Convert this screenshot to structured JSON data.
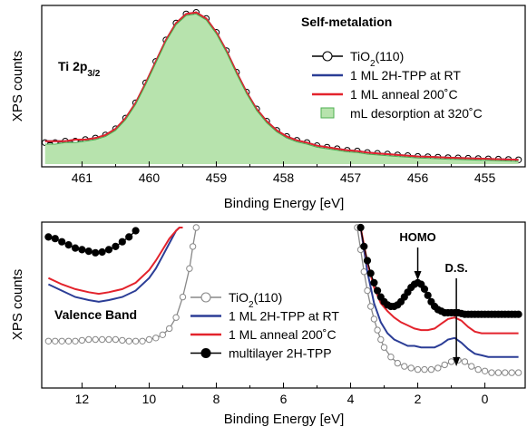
{
  "chart_data": [
    {
      "type": "line",
      "panel_label": "Ti 2p",
      "panel_label_sub": "3/2",
      "annotation": "Self-metalation",
      "xlabel": "Binding Energy [eV]",
      "ylabel": "XPS counts",
      "xlim": [
        461.6,
        454.4
      ],
      "x_reversed": true,
      "ylim": [
        0,
        1.0
      ],
      "xticks": [
        461,
        460,
        459,
        458,
        457,
        456,
        455
      ],
      "tick_labels": [
        "461",
        "460",
        "459",
        "458",
        "457",
        "456",
        "455"
      ],
      "y_tick_labels_shown": false,
      "grid": false,
      "legend_position": "right",
      "series": [
        {
          "name": "TiO",
          "name_sub": "2",
          "name_suffix": "(110)",
          "style": "line-open-circle",
          "color": "#000000",
          "x": [
            461.55,
            461.4,
            461.25,
            461.1,
            460.95,
            460.8,
            460.65,
            460.5,
            460.35,
            460.2,
            460.05,
            459.9,
            459.75,
            459.6,
            459.45,
            459.3,
            459.15,
            459.0,
            458.85,
            458.7,
            458.55,
            458.4,
            458.25,
            458.1,
            457.95,
            457.8,
            457.65,
            457.5,
            457.35,
            457.2,
            457.05,
            456.9,
            456.75,
            456.6,
            456.45,
            456.3,
            456.15,
            456.0,
            455.85,
            455.7,
            455.55,
            455.4,
            455.25,
            455.1,
            454.95,
            454.8,
            454.65,
            454.5
          ],
          "y": [
            0.14,
            0.14,
            0.15,
            0.15,
            0.16,
            0.17,
            0.19,
            0.23,
            0.3,
            0.4,
            0.53,
            0.67,
            0.81,
            0.92,
            0.98,
            0.99,
            0.95,
            0.86,
            0.74,
            0.6,
            0.47,
            0.36,
            0.28,
            0.22,
            0.18,
            0.155,
            0.14,
            0.12,
            0.11,
            0.1,
            0.09,
            0.085,
            0.075,
            0.07,
            0.065,
            0.06,
            0.055,
            0.05,
            0.048,
            0.045,
            0.042,
            0.04,
            0.038,
            0.036,
            0.034,
            0.032,
            0.03,
            0.028
          ]
        },
        {
          "name": "1 ML 2H-TPP at RT",
          "style": "line",
          "color": "#2b3d96",
          "x": [
            461.55,
            461.4,
            461.25,
            461.1,
            460.95,
            460.8,
            460.65,
            460.5,
            460.35,
            460.2,
            460.05,
            459.9,
            459.75,
            459.6,
            459.45,
            459.3,
            459.15,
            459.0,
            458.85,
            458.7,
            458.55,
            458.4,
            458.25,
            458.1,
            457.95,
            457.8,
            457.65,
            457.5,
            457.35,
            457.2,
            457.05,
            456.9,
            456.75,
            456.6,
            456.45,
            456.3,
            456.15,
            456.0,
            455.85,
            455.7,
            455.55,
            455.4,
            455.25,
            455.1,
            454.95,
            454.8,
            454.65,
            454.5
          ],
          "y": [
            0.15,
            0.15,
            0.15,
            0.16,
            0.16,
            0.17,
            0.19,
            0.23,
            0.3,
            0.4,
            0.53,
            0.67,
            0.81,
            0.92,
            0.98,
            0.99,
            0.95,
            0.86,
            0.74,
            0.6,
            0.47,
            0.36,
            0.28,
            0.22,
            0.18,
            0.155,
            0.14,
            0.12,
            0.11,
            0.1,
            0.09,
            0.085,
            0.075,
            0.07,
            0.065,
            0.06,
            0.055,
            0.05,
            0.048,
            0.045,
            0.042,
            0.04,
            0.038,
            0.036,
            0.034,
            0.032,
            0.03,
            0.028
          ]
        },
        {
          "name": "1 ML anneal 200˚C",
          "style": "line",
          "color": "#e3232c",
          "x": [
            461.55,
            461.4,
            461.25,
            461.1,
            460.95,
            460.8,
            460.65,
            460.5,
            460.35,
            460.2,
            460.05,
            459.9,
            459.75,
            459.6,
            459.45,
            459.3,
            459.15,
            459.0,
            458.85,
            458.7,
            458.55,
            458.4,
            458.25,
            458.1,
            457.95,
            457.8,
            457.65,
            457.5,
            457.35,
            457.2,
            457.05,
            456.9,
            456.75,
            456.6,
            456.45,
            456.3,
            456.15,
            456.0,
            455.85,
            455.7,
            455.55,
            455.4,
            455.25,
            455.1,
            454.95,
            454.8,
            454.65,
            454.5
          ],
          "y": [
            0.15,
            0.15,
            0.15,
            0.16,
            0.16,
            0.17,
            0.19,
            0.23,
            0.3,
            0.4,
            0.53,
            0.67,
            0.81,
            0.92,
            0.98,
            0.99,
            0.95,
            0.86,
            0.74,
            0.6,
            0.47,
            0.36,
            0.28,
            0.22,
            0.18,
            0.155,
            0.14,
            0.12,
            0.11,
            0.1,
            0.09,
            0.085,
            0.075,
            0.07,
            0.065,
            0.06,
            0.055,
            0.05,
            0.048,
            0.045,
            0.042,
            0.04,
            0.038,
            0.036,
            0.034,
            0.032,
            0.03,
            0.028
          ]
        },
        {
          "name": "mL desorption at 320˚C",
          "style": "filled-area",
          "color": "#b7e3ad",
          "edge_color": "#4caf50",
          "x": [
            461.55,
            461.4,
            461.25,
            461.1,
            460.95,
            460.8,
            460.65,
            460.5,
            460.35,
            460.2,
            460.05,
            459.9,
            459.75,
            459.6,
            459.45,
            459.3,
            459.15,
            459.0,
            458.85,
            458.7,
            458.55,
            458.4,
            458.25,
            458.1,
            457.95,
            457.8,
            457.65,
            457.5,
            457.35,
            457.2,
            457.05,
            456.9,
            456.75,
            456.6,
            456.45,
            456.3,
            456.15,
            456.0,
            455.85,
            455.7,
            455.55,
            455.4,
            455.25,
            455.1,
            454.95,
            454.8,
            454.65,
            454.5
          ],
          "y": [
            0.13,
            0.13,
            0.14,
            0.14,
            0.15,
            0.16,
            0.18,
            0.22,
            0.29,
            0.39,
            0.52,
            0.66,
            0.8,
            0.91,
            0.97,
            0.98,
            0.94,
            0.85,
            0.73,
            0.59,
            0.46,
            0.35,
            0.27,
            0.21,
            0.17,
            0.145,
            0.13,
            0.11,
            0.1,
            0.09,
            0.08,
            0.075,
            0.065,
            0.06,
            0.055,
            0.05,
            0.045,
            0.04,
            0.038,
            0.035,
            0.032,
            0.03,
            0.028,
            0.026,
            0.024,
            0.022,
            0.02,
            0.018
          ]
        }
      ]
    },
    {
      "type": "line",
      "panel_label": "Valence Band",
      "xlabel": "Binding Energy [eV]",
      "ylabel": "XPS counts",
      "xlim": [
        13.2,
        -1.2
      ],
      "x_reversed": true,
      "ylim": [
        0,
        1.0
      ],
      "xticks": [
        12,
        10,
        8,
        6,
        4,
        2,
        0
      ],
      "tick_labels": [
        "12",
        "10",
        "8",
        "6",
        "4",
        "2",
        "0"
      ],
      "y_tick_labels_shown": false,
      "grid": false,
      "legend_position": "center",
      "annotations": [
        {
          "text": "HOMO",
          "x": 2.0
        },
        {
          "text": "D.S.",
          "x": 0.85
        }
      ],
      "series": [
        {
          "name": "TiO",
          "name_sub": "2",
          "name_suffix": "(110)",
          "style": "line-open-circle",
          "color": "#888888",
          "segments": [
            {
              "x": [
                13.0,
                12.8,
                12.6,
                12.4,
                12.2,
                12.0,
                11.8,
                11.6,
                11.4,
                11.2,
                11.0,
                10.8,
                10.6,
                10.4,
                10.2,
                10.0,
                9.8,
                9.6,
                9.4,
                9.2,
                9.0,
                8.8,
                8.7,
                8.6
              ],
              "y": [
                0.28,
                0.28,
                0.28,
                0.28,
                0.28,
                0.285,
                0.29,
                0.29,
                0.29,
                0.29,
                0.29,
                0.285,
                0.28,
                0.28,
                0.28,
                0.29,
                0.3,
                0.32,
                0.36,
                0.43,
                0.56,
                0.74,
                0.88,
                1.0
              ]
            },
            {
              "x": [
                3.8,
                3.7,
                3.6,
                3.5,
                3.4,
                3.3,
                3.2,
                3.1,
                3.0,
                2.8,
                2.6,
                2.4,
                2.2,
                2.0,
                1.8,
                1.6,
                1.4,
                1.2,
                1.0,
                0.8,
                0.6,
                0.4,
                0.2,
                0.0,
                -0.2,
                -0.4,
                -0.6,
                -0.8,
                -1.0
              ],
              "y": [
                1.0,
                0.86,
                0.72,
                0.6,
                0.5,
                0.42,
                0.35,
                0.29,
                0.24,
                0.18,
                0.14,
                0.12,
                0.11,
                0.1,
                0.1,
                0.1,
                0.11,
                0.13,
                0.15,
                0.16,
                0.15,
                0.12,
                0.1,
                0.09,
                0.08,
                0.08,
                0.08,
                0.08,
                0.08
              ]
            }
          ]
        },
        {
          "name": "1 ML 2H-TPP at RT",
          "style": "line",
          "color": "#2b3d96",
          "segments": [
            {
              "x": [
                13.0,
                12.6,
                12.2,
                11.8,
                11.5,
                11.2,
                10.8,
                10.4,
                10.0,
                9.8,
                9.6,
                9.4,
                9.2,
                9.1
              ],
              "y": [
                0.64,
                0.6,
                0.56,
                0.54,
                0.53,
                0.54,
                0.56,
                0.6,
                0.68,
                0.74,
                0.82,
                0.9,
                0.98,
                1.0
              ]
            },
            {
              "x": [
                3.7,
                3.5,
                3.3,
                3.1,
                2.9,
                2.7,
                2.5,
                2.3,
                2.1,
                1.9,
                1.7,
                1.5,
                1.3,
                1.1,
                0.9,
                0.7,
                0.5,
                0.3,
                0.1,
                -0.1,
                -0.3,
                -0.5,
                -0.7,
                -1.0
              ],
              "y": [
                1.0,
                0.72,
                0.52,
                0.4,
                0.33,
                0.29,
                0.27,
                0.25,
                0.25,
                0.24,
                0.24,
                0.24,
                0.26,
                0.29,
                0.3,
                0.27,
                0.23,
                0.2,
                0.19,
                0.18,
                0.18,
                0.18,
                0.18,
                0.18
              ]
            }
          ]
        },
        {
          "name": "1 ML anneal 200˚C",
          "style": "line",
          "color": "#e3232c",
          "segments": [
            {
              "x": [
                13.0,
                12.6,
                12.2,
                11.8,
                11.5,
                11.2,
                10.8,
                10.4,
                10.0,
                9.8,
                9.6,
                9.4,
                9.2,
                9.1,
                9.0
              ],
              "y": [
                0.68,
                0.64,
                0.61,
                0.59,
                0.58,
                0.59,
                0.61,
                0.65,
                0.73,
                0.79,
                0.86,
                0.93,
                0.98,
                1.0,
                1.0
              ]
            },
            {
              "x": [
                3.7,
                3.5,
                3.3,
                3.1,
                2.9,
                2.7,
                2.5,
                2.3,
                2.1,
                1.9,
                1.7,
                1.5,
                1.3,
                1.1,
                0.9,
                0.7,
                0.5,
                0.3,
                0.1,
                -0.1,
                -0.3,
                -0.5,
                -0.7,
                -1.0
              ],
              "y": [
                1.0,
                0.78,
                0.62,
                0.52,
                0.47,
                0.43,
                0.4,
                0.38,
                0.36,
                0.35,
                0.35,
                0.36,
                0.39,
                0.42,
                0.43,
                0.41,
                0.37,
                0.34,
                0.33,
                0.33,
                0.33,
                0.33,
                0.33,
                0.33
              ]
            }
          ]
        },
        {
          "name": "multilayer 2H-TPP",
          "style": "line-filled-circle",
          "color": "#000000",
          "segments": [
            {
              "x": [
                13.0,
                12.8,
                12.6,
                12.4,
                12.2,
                12.0,
                11.8,
                11.6,
                11.4,
                11.2,
                11.0,
                10.8,
                10.6,
                10.4
              ],
              "y": [
                0.94,
                0.93,
                0.91,
                0.89,
                0.87,
                0.86,
                0.85,
                0.84,
                0.845,
                0.86,
                0.88,
                0.91,
                0.94,
                0.98
              ]
            },
            {
              "x": [
                3.7,
                3.6,
                3.5,
                3.4,
                3.3,
                3.2,
                3.1,
                3.0,
                2.9,
                2.8,
                2.7,
                2.6,
                2.5,
                2.4,
                2.3,
                2.2,
                2.1,
                2.0,
                1.9,
                1.8,
                1.7,
                1.6,
                1.5,
                1.4,
                1.3,
                1.2,
                1.1,
                1.0,
                0.9,
                0.8,
                0.7,
                0.6,
                0.5,
                0.4,
                0.3,
                0.2,
                0.1,
                0.0,
                -0.1,
                -0.2,
                -0.3,
                -0.4,
                -0.5,
                -0.6,
                -0.7,
                -0.8,
                -0.9,
                -1.0
              ],
              "y": [
                1.0,
                0.88,
                0.79,
                0.71,
                0.65,
                0.6,
                0.56,
                0.53,
                0.51,
                0.5,
                0.5,
                0.51,
                0.53,
                0.56,
                0.59,
                0.62,
                0.64,
                0.65,
                0.64,
                0.61,
                0.57,
                0.53,
                0.5,
                0.48,
                0.47,
                0.46,
                0.46,
                0.46,
                0.46,
                0.46,
                0.455,
                0.45,
                0.45,
                0.45,
                0.45,
                0.45,
                0.45,
                0.45,
                0.45,
                0.45,
                0.45,
                0.45,
                0.45,
                0.45,
                0.45,
                0.45,
                0.45,
                0.45
              ]
            }
          ]
        }
      ]
    }
  ]
}
